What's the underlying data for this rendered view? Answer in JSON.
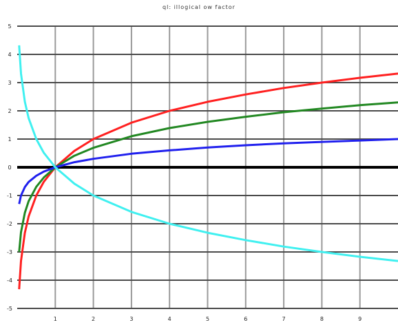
{
  "chart_data": {
    "type": "line",
    "title": "ql: illogical ow factor",
    "xlim": [
      0,
      10
    ],
    "ylim": [
      -5,
      5
    ],
    "x_ticks": [
      1,
      2,
      3,
      4,
      5,
      6,
      7,
      8,
      9
    ],
    "y_ticks": [
      -5,
      -4,
      -3,
      -2,
      -1,
      0,
      1,
      2,
      3,
      4,
      5
    ],
    "grid": true,
    "legend": "none",
    "series": [
      {
        "color": "#ff2020",
        "x": [
          0.05,
          0.1,
          0.2,
          0.3,
          0.5,
          0.7,
          1,
          1.5,
          2,
          3,
          4,
          5,
          6,
          7,
          8,
          9,
          10
        ],
        "y": [
          -4.32,
          -3.32,
          -2.32,
          -1.74,
          -1.0,
          -0.51,
          0.0,
          0.58,
          1.0,
          1.58,
          2.0,
          2.32,
          2.58,
          2.81,
          3.0,
          3.17,
          3.32
        ]
      },
      {
        "color": "#228822",
        "x": [
          0.05,
          0.1,
          0.2,
          0.3,
          0.5,
          0.7,
          1,
          1.5,
          2,
          3,
          4,
          5,
          6,
          7,
          8,
          9,
          10
        ],
        "y": [
          -3.0,
          -2.3,
          -1.61,
          -1.2,
          -0.69,
          -0.36,
          0.0,
          0.41,
          0.69,
          1.1,
          1.39,
          1.61,
          1.79,
          1.95,
          2.08,
          2.2,
          2.3
        ]
      },
      {
        "color": "#2020ee",
        "x": [
          0.05,
          0.1,
          0.2,
          0.3,
          0.5,
          0.7,
          1,
          1.5,
          2,
          3,
          4,
          5,
          6,
          7,
          8,
          9,
          10
        ],
        "y": [
          -1.3,
          -1.0,
          -0.7,
          -0.52,
          -0.3,
          -0.15,
          0.0,
          0.18,
          0.3,
          0.48,
          0.6,
          0.7,
          0.78,
          0.85,
          0.9,
          0.95,
          1.0
        ]
      },
      {
        "color": "#40f0f0",
        "x": [
          0.05,
          0.1,
          0.2,
          0.3,
          0.5,
          0.7,
          1,
          1.5,
          2,
          3,
          4,
          5,
          6,
          7,
          8,
          9,
          10
        ],
        "y": [
          4.32,
          3.32,
          2.32,
          1.74,
          1.0,
          0.51,
          0.0,
          -0.58,
          -1.0,
          -1.58,
          -2.0,
          -2.32,
          -2.58,
          -2.81,
          -3.0,
          -3.17,
          -3.32
        ]
      }
    ]
  }
}
